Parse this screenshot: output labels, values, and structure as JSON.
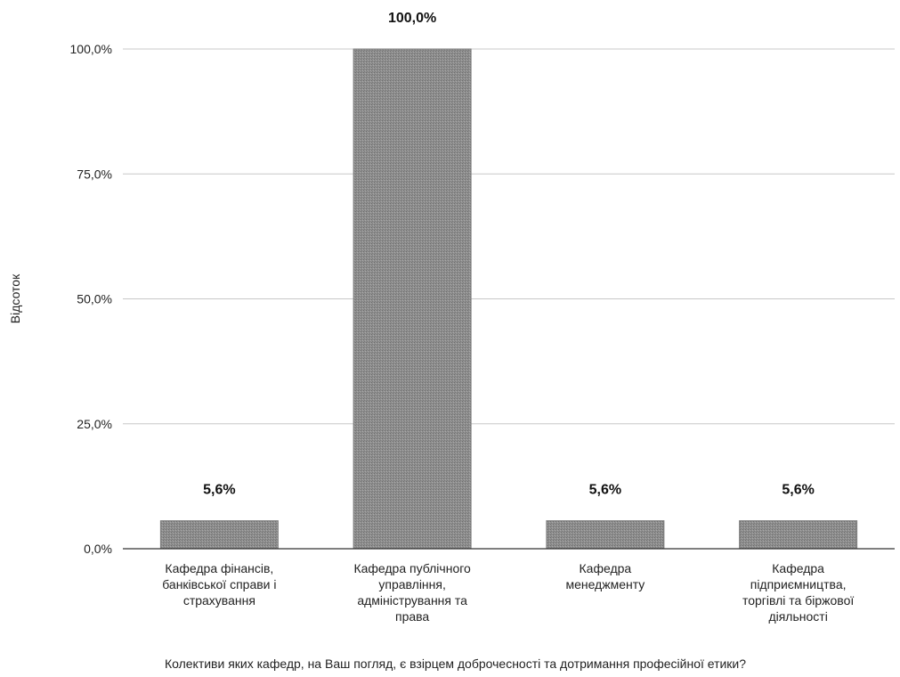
{
  "chart_data": {
    "type": "bar",
    "title": "",
    "ylabel": "Відсоток",
    "xlabel": "Колективи яких кафедр, на Ваш погляд, є взірцем доброчесності та дотримання професійної етики?",
    "ylim": [
      0,
      100
    ],
    "yticks": [
      {
        "value": 0,
        "label": "0,0%"
      },
      {
        "value": 25,
        "label": "25,0%"
      },
      {
        "value": 50,
        "label": "50,0%"
      },
      {
        "value": 75,
        "label": "75,0%"
      },
      {
        "value": 100,
        "label": "100,0%"
      }
    ],
    "grid": true,
    "legend": "none",
    "bar_color": "#8f8f8f",
    "categories": [
      [
        "Кафедра фінансів,",
        "банківської справи і",
        "страхування"
      ],
      [
        "Кафедра публічного",
        "управління,",
        "адміністрування та",
        "права"
      ],
      [
        "Кафедра",
        "менеджменту"
      ],
      [
        "Кафедра",
        "підприємництва,",
        "торгівлі та біржової",
        "діяльності"
      ]
    ],
    "values": [
      5.6,
      100.0,
      5.6,
      5.6
    ],
    "value_labels": [
      "5,6%",
      "100,0%",
      "5,6%",
      "5,6%"
    ]
  }
}
